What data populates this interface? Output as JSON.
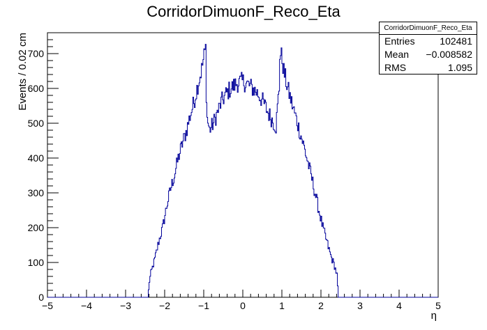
{
  "chart_data": {
    "type": "histogram",
    "title": "CorridorDimuonF_Reco_Eta",
    "xlabel": "η",
    "ylabel": "Events / 0.02 cm",
    "xlim": [
      -5,
      5
    ],
    "ylim": [
      0,
      760
    ],
    "x_ticks": [
      "−5",
      "−4",
      "−3",
      "−2",
      "−1",
      "0",
      "1",
      "2",
      "3",
      "4",
      "5"
    ],
    "y_ticks": [
      "0",
      "100",
      "200",
      "300",
      "400",
      "500",
      "600",
      "700"
    ],
    "line_color": "#000099",
    "bin_width": 0.02,
    "envelope": [
      [
        -2.42,
        0
      ],
      [
        -2.4,
        40
      ],
      [
        -2.35,
        70
      ],
      [
        -2.25,
        110
      ],
      [
        -2.15,
        160
      ],
      [
        -2.05,
        200
      ],
      [
        -1.95,
        260
      ],
      [
        -1.85,
        310
      ],
      [
        -1.75,
        350
      ],
      [
        -1.65,
        400
      ],
      [
        -1.55,
        440
      ],
      [
        -1.45,
        475
      ],
      [
        -1.35,
        520
      ],
      [
        -1.25,
        560
      ],
      [
        -1.15,
        610
      ],
      [
        -1.05,
        655
      ],
      [
        -0.98,
        700
      ],
      [
        -0.95,
        715
      ],
      [
        -0.92,
        520
      ],
      [
        -0.85,
        480
      ],
      [
        -0.75,
        500
      ],
      [
        -0.65,
        530
      ],
      [
        -0.55,
        560
      ],
      [
        -0.45,
        580
      ],
      [
        -0.35,
        595
      ],
      [
        -0.25,
        605
      ],
      [
        -0.15,
        615
      ],
      [
        0.0,
        620
      ],
      [
        0.15,
        610
      ],
      [
        0.25,
        600
      ],
      [
        0.35,
        590
      ],
      [
        0.45,
        575
      ],
      [
        0.55,
        555
      ],
      [
        0.65,
        530
      ],
      [
        0.75,
        510
      ],
      [
        0.85,
        490
      ],
      [
        0.93,
        600
      ],
      [
        0.95,
        700
      ],
      [
        1.0,
        690
      ],
      [
        1.05,
        650
      ],
      [
        1.15,
        600
      ],
      [
        1.25,
        560
      ],
      [
        1.35,
        520
      ],
      [
        1.45,
        480
      ],
      [
        1.55,
        440
      ],
      [
        1.65,
        395
      ],
      [
        1.75,
        350
      ],
      [
        1.85,
        300
      ],
      [
        1.95,
        250
      ],
      [
        2.05,
        200
      ],
      [
        2.15,
        160
      ],
      [
        2.25,
        120
      ],
      [
        2.35,
        90
      ],
      [
        2.42,
        60
      ],
      [
        2.44,
        0
      ]
    ]
  },
  "stats": {
    "name": "CorridorDimuonF_Reco_Eta",
    "rows": [
      {
        "label": "Entries",
        "value": "102481"
      },
      {
        "label": "Mean",
        "value": "−0.008582"
      },
      {
        "label": "RMS",
        "value": "1.095"
      }
    ]
  }
}
